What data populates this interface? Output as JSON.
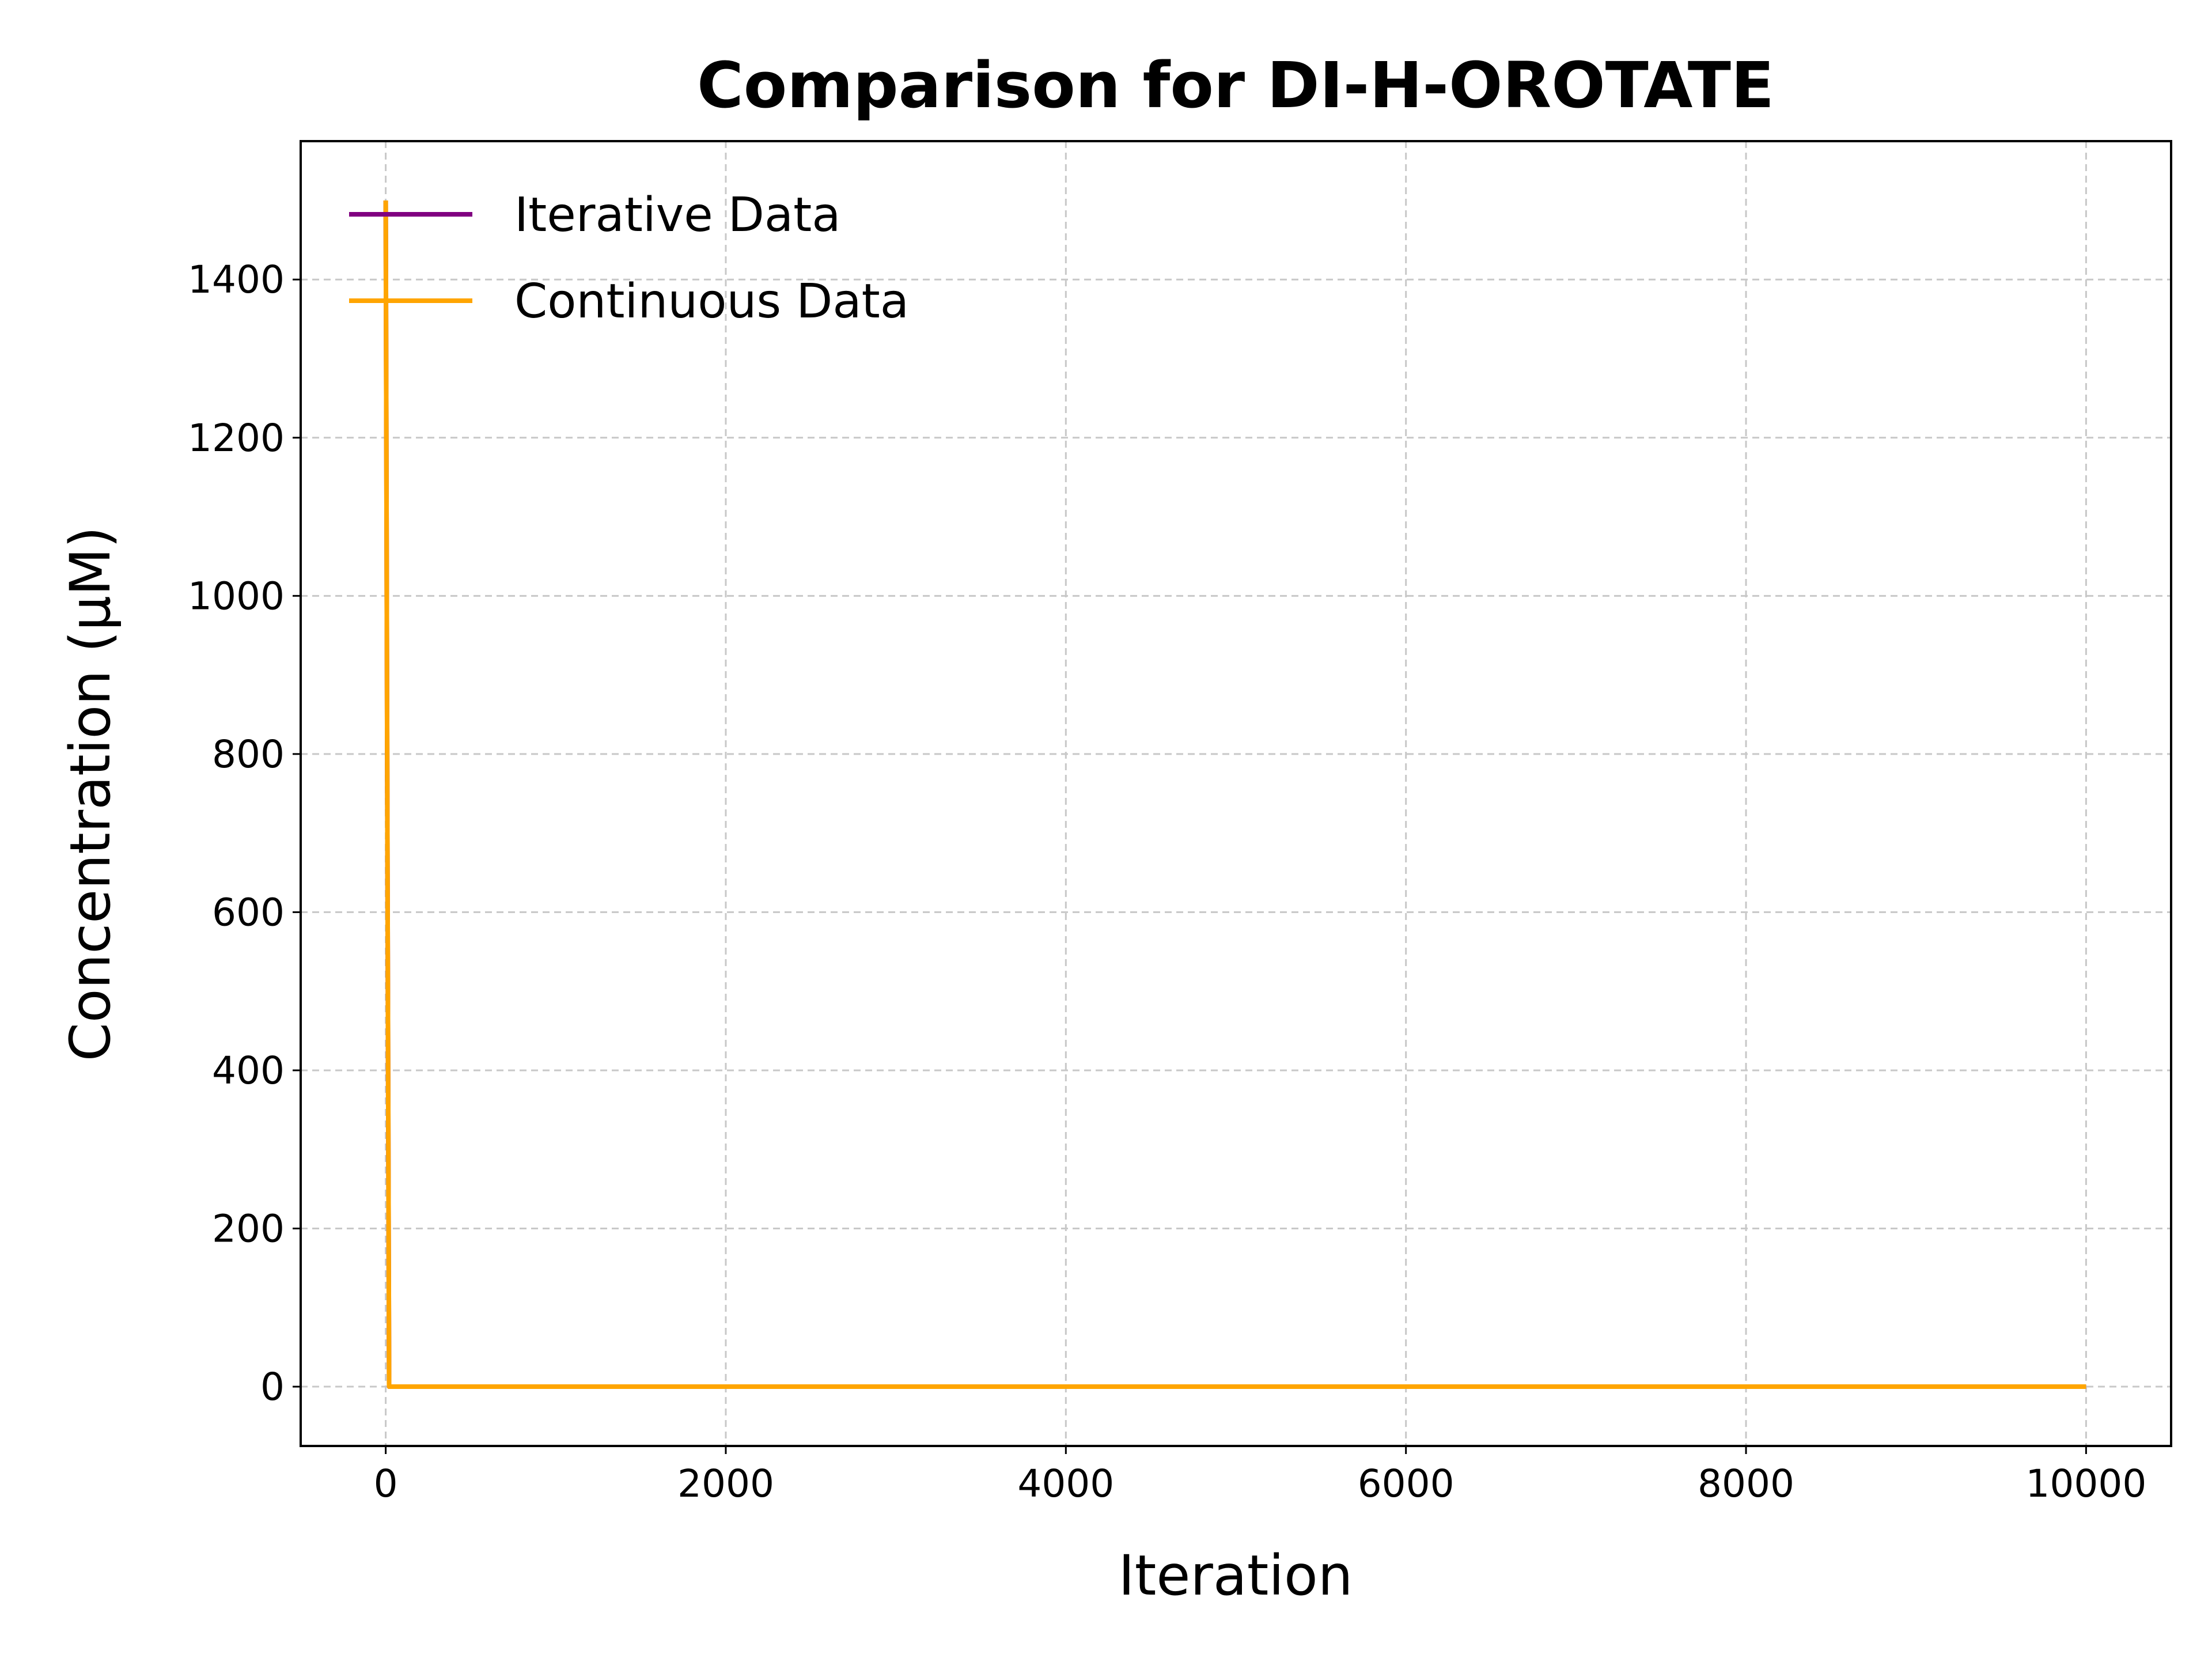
{
  "chart_data": {
    "type": "line",
    "title": "Comparison for DI-H-OROTATE",
    "xlabel": "Iteration",
    "ylabel": "Concentration (μM)",
    "xlim": [
      -500,
      10500
    ],
    "ylim": [
      -75,
      1575
    ],
    "xticks": [
      0,
      2000,
      4000,
      6000,
      8000,
      10000
    ],
    "yticks": [
      0,
      200,
      400,
      600,
      800,
      1000,
      1200,
      1400
    ],
    "grid": true,
    "legend_position": "top-left",
    "series": [
      {
        "name": "Iterative Data",
        "color": "#800080",
        "x": [
          0,
          10,
          20,
          50,
          100,
          1000,
          2000,
          4000,
          6000,
          8000,
          10000
        ],
        "y": [
          1500,
          700,
          0,
          0,
          0,
          0,
          0,
          0,
          0,
          0,
          0
        ]
      },
      {
        "name": "Continuous Data",
        "color": "#FFA500",
        "x": [
          0,
          10,
          20,
          50,
          100,
          1000,
          2000,
          4000,
          6000,
          8000,
          10000
        ],
        "y": [
          1500,
          700,
          0,
          0,
          0,
          0,
          0,
          0,
          0,
          0,
          0
        ]
      }
    ]
  }
}
